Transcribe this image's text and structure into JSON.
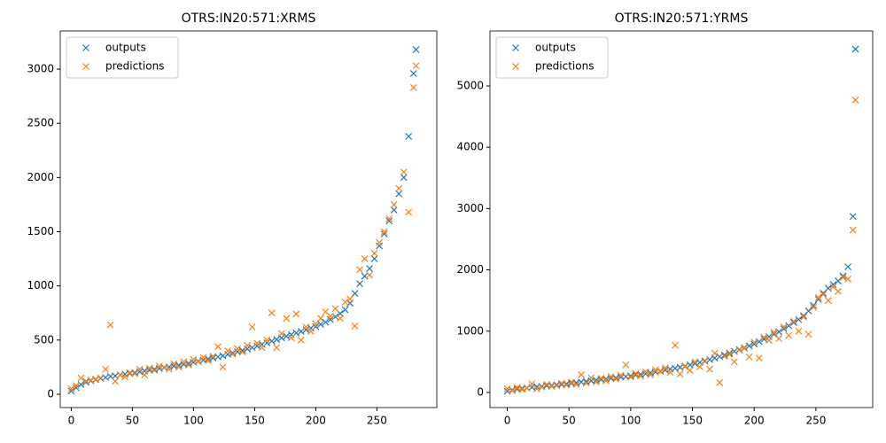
{
  "chart_data": [
    {
      "type": "scatter",
      "title": "OTRS:IN20:571:XRMS",
      "marker": "x",
      "legend": "upper left",
      "xlim": [
        -9,
        299
      ],
      "ylim": [
        -123,
        3352
      ],
      "xticks": [
        0,
        50,
        100,
        150,
        200,
        250
      ],
      "yticks": [
        0,
        500,
        1000,
        1500,
        2000,
        2500,
        3000
      ],
      "x": [
        0,
        4,
        8,
        12,
        16,
        20,
        24,
        28,
        32,
        36,
        40,
        44,
        48,
        52,
        56,
        60,
        64,
        68,
        72,
        76,
        80,
        84,
        88,
        92,
        96,
        100,
        104,
        108,
        112,
        116,
        120,
        124,
        128,
        132,
        136,
        140,
        144,
        148,
        152,
        156,
        160,
        164,
        168,
        172,
        176,
        180,
        184,
        188,
        192,
        196,
        200,
        204,
        208,
        212,
        216,
        220,
        224,
        228,
        232,
        236,
        240,
        244,
        248,
        252,
        256,
        260,
        264,
        268,
        272,
        276,
        280,
        282
      ],
      "series": [
        {
          "name": "outputs",
          "color": "#1f77b4",
          "values": [
            30,
            60,
            90,
            110,
            125,
            135,
            145,
            155,
            165,
            170,
            178,
            185,
            192,
            200,
            208,
            215,
            222,
            230,
            238,
            245,
            252,
            260,
            268,
            276,
            285,
            295,
            305,
            315,
            325,
            335,
            345,
            355,
            368,
            380,
            392,
            405,
            418,
            430,
            445,
            460,
            475,
            490,
            505,
            520,
            535,
            550,
            565,
            580,
            595,
            610,
            625,
            645,
            665,
            690,
            715,
            745,
            780,
            840,
            930,
            1020,
            1090,
            1160,
            1250,
            1370,
            1480,
            1600,
            1700,
            1850,
            2000,
            2380,
            2960,
            3180
          ]
        },
        {
          "name": "predictions",
          "color": "#ff7f0e",
          "values": [
            50,
            80,
            150,
            120,
            130,
            140,
            150,
            230,
            640,
            120,
            180,
            160,
            200,
            190,
            230,
            180,
            240,
            220,
            260,
            250,
            230,
            280,
            250,
            300,
            270,
            320,
            300,
            340,
            310,
            350,
            440,
            250,
            400,
            370,
            420,
            390,
            450,
            620,
            470,
            430,
            500,
            750,
            430,
            560,
            700,
            520,
            740,
            500,
            620,
            580,
            650,
            700,
            760,
            720,
            790,
            700,
            850,
            880,
            630,
            1150,
            1250,
            1100,
            1300,
            1400,
            1500,
            1620,
            1750,
            1900,
            2050,
            1680,
            2830,
            3030
          ]
        }
      ]
    },
    {
      "type": "scatter",
      "title": "OTRS:IN20:571:YRMS",
      "marker": "x",
      "legend": "upper left",
      "xlim": [
        -14,
        296
      ],
      "ylim": [
        -246,
        5896
      ],
      "xticks": [
        0,
        50,
        100,
        150,
        200,
        250
      ],
      "yticks": [
        0,
        1000,
        2000,
        3000,
        4000,
        5000
      ],
      "x": [
        0,
        4,
        8,
        12,
        16,
        20,
        24,
        28,
        32,
        36,
        40,
        44,
        48,
        52,
        56,
        60,
        64,
        68,
        72,
        76,
        80,
        84,
        88,
        92,
        96,
        100,
        104,
        108,
        112,
        116,
        120,
        124,
        128,
        132,
        136,
        140,
        144,
        148,
        152,
        156,
        160,
        164,
        168,
        172,
        176,
        180,
        184,
        188,
        192,
        196,
        200,
        204,
        208,
        212,
        216,
        220,
        224,
        228,
        232,
        236,
        240,
        244,
        248,
        252,
        256,
        260,
        264,
        268,
        272,
        276,
        280,
        282
      ],
      "series": [
        {
          "name": "outputs",
          "color": "#1f77b4",
          "values": [
            20,
            40,
            55,
            65,
            75,
            85,
            95,
            100,
            110,
            115,
            125,
            130,
            140,
            150,
            160,
            170,
            180,
            190,
            200,
            210,
            220,
            230,
            240,
            250,
            260,
            270,
            285,
            295,
            305,
            320,
            335,
            350,
            365,
            380,
            395,
            410,
            430,
            450,
            470,
            490,
            510,
            535,
            560,
            585,
            610,
            640,
            670,
            700,
            730,
            760,
            790,
            830,
            870,
            910,
            950,
            990,
            1040,
            1090,
            1140,
            1190,
            1250,
            1330,
            1420,
            1520,
            1620,
            1700,
            1760,
            1820,
            1900,
            2050,
            2870,
            5600
          ]
        },
        {
          "name": "predictions",
          "color": "#ff7f0e",
          "values": [
            60,
            30,
            80,
            50,
            70,
            140,
            60,
            90,
            130,
            100,
            110,
            150,
            120,
            170,
            130,
            290,
            150,
            240,
            170,
            230,
            190,
            260,
            220,
            280,
            450,
            250,
            310,
            270,
            340,
            290,
            370,
            340,
            400,
            330,
            770,
            300,
            420,
            360,
            500,
            420,
            520,
            380,
            640,
            160,
            590,
            620,
            500,
            690,
            720,
            580,
            820,
            560,
            900,
            850,
            980,
            880,
            1070,
            930,
            1160,
            1000,
            1230,
            950,
            1390,
            1550,
            1600,
            1500,
            1720,
            1650,
            1880,
            1850,
            2650,
            4770
          ]
        }
      ]
    }
  ]
}
